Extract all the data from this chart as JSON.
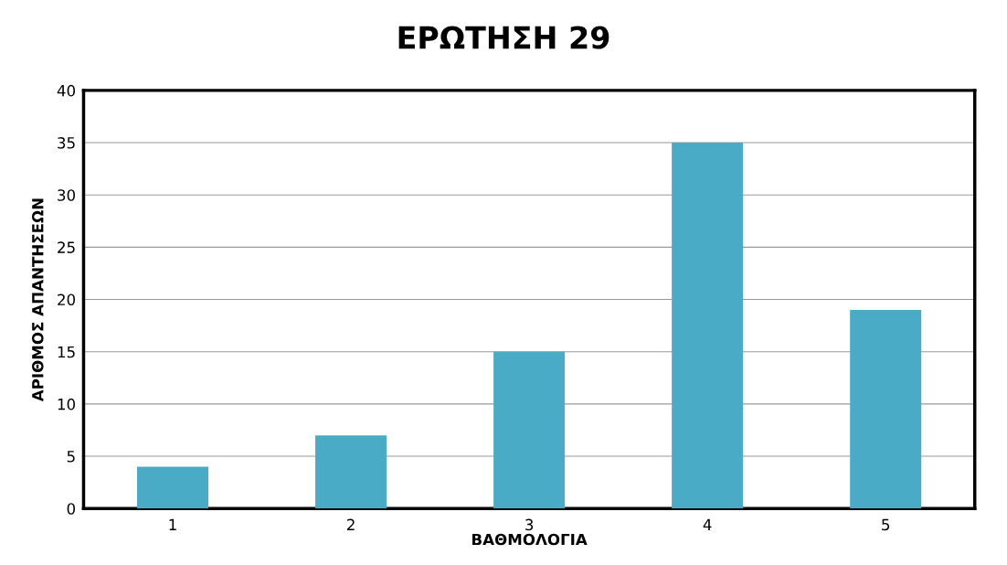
{
  "chart_data": {
    "type": "bar",
    "title": "ΕΡΩΤΗΣΗ 29",
    "xlabel": "ΒΑΘΜΟΛΟΓΙΑ",
    "ylabel": "ΑΡΙΘΜΟΣ ΑΠΑΝΤΗΣΕΩΝ",
    "categories": [
      "1",
      "2",
      "3",
      "4",
      "5"
    ],
    "values": [
      4,
      7,
      15,
      35,
      19
    ],
    "color": "#4aabc6",
    "ylim": [
      0,
      40
    ],
    "yticks": [
      0,
      5,
      10,
      15,
      20,
      25,
      30,
      35,
      40
    ],
    "grid": "y",
    "legend": false
  }
}
